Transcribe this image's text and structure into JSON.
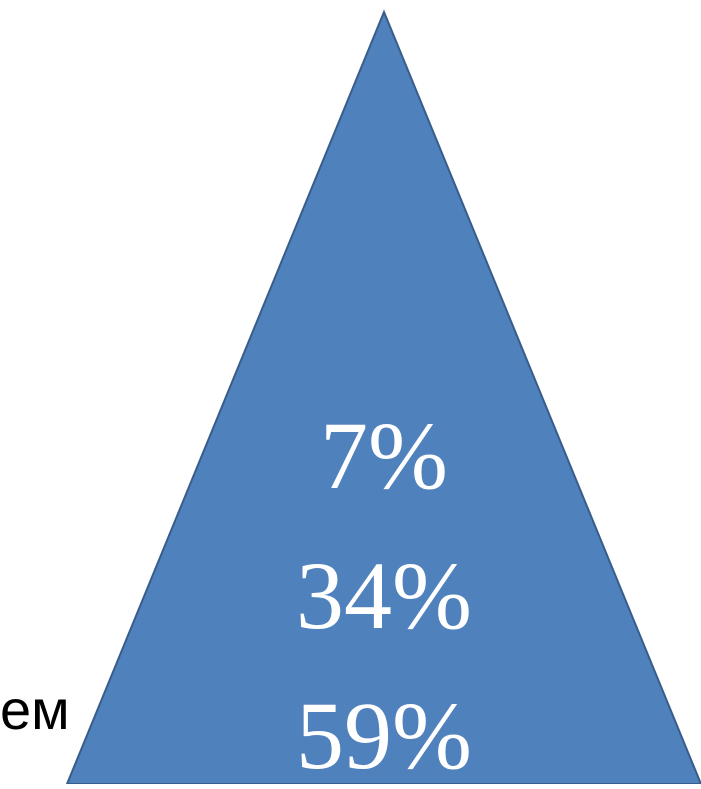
{
  "side_text": "ем",
  "pyramid": {
    "fill_color": "#4f81bd",
    "stroke_color": "#385d8a",
    "levels": [
      {
        "label": "7%"
      },
      {
        "label": "34%"
      },
      {
        "label": "59%"
      }
    ]
  }
}
